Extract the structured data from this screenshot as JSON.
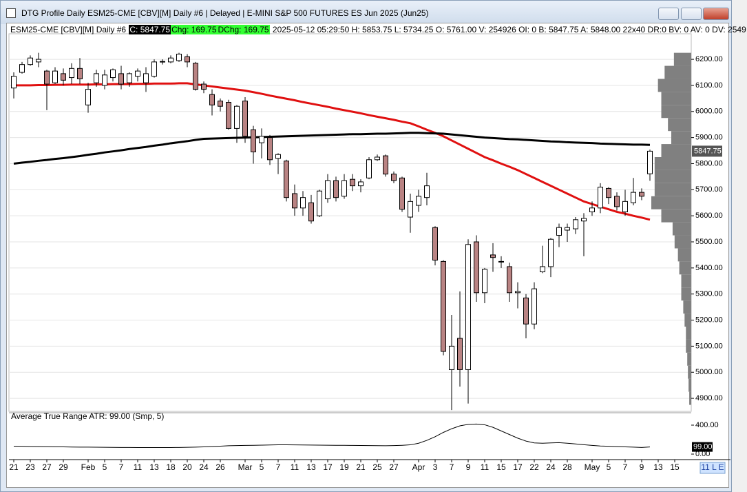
{
  "window": {
    "title": "DTG Profile Daily ESM25-CME [CBV][M]  Daily #6 | Delayed | E-MINI S&P 500 FUTURES ES Jun 2025 (Jun25)"
  },
  "header": {
    "symbol": "ESM25-CME [CBV][M]  Daily #6",
    "close": "C: 5847.75",
    "change": "Chg: 169.75",
    "dchange": "DChg: 169.75",
    "details": "2025-05-12 05:29:50 H: 5853.75 L: 5734.25 O: 5761.00 V: 254926 OI: 0 B: 5847.75 A: 5848.00 22x40 DR:0 BV: 0 AV: 0 DV: 2549"
  },
  "chart_data": [
    {
      "type": "candlestick",
      "categories": [
        "21",
        null,
        "23",
        null,
        "27",
        null,
        "29",
        null,
        null,
        "Feb",
        null,
        "5",
        null,
        "7",
        null,
        "11",
        null,
        "13",
        null,
        "18",
        null,
        "20",
        null,
        "24",
        null,
        "26",
        null,
        null,
        "Mar",
        null,
        "5",
        null,
        "7",
        null,
        "11",
        null,
        "13",
        null,
        "17",
        null,
        "19",
        null,
        "21",
        null,
        "25",
        null,
        "27",
        null,
        null,
        "Apr",
        null,
        "3",
        null,
        "7",
        null,
        "9",
        null,
        "11",
        null,
        "15",
        null,
        "17",
        null,
        "22",
        null,
        "24",
        null,
        "28",
        null,
        null,
        "May",
        null,
        "5",
        null,
        "7",
        null,
        "9",
        null
      ],
      "extra_categories": [
        "13",
        null,
        "15"
      ],
      "open": [
        6090,
        6150,
        6180,
        6190,
        6155,
        6110,
        6145,
        6130,
        6165,
        6025,
        6110,
        6100,
        6130,
        6145,
        6110,
        6135,
        6110,
        6135,
        6190,
        6190,
        6195,
        6210,
        6185,
        6105,
        6065,
        6040,
        6035,
        5935,
        6040,
        5930,
        5880,
        5900,
        5820,
        5810,
        5685,
        5630,
        5650,
        5600,
        5665,
        5735,
        5675,
        5740,
        5715,
        5745,
        5815,
        5830,
        5760,
        5745,
        5595,
        5640,
        5670,
        5555,
        5425,
        5010,
        5130,
        5010,
        5500,
        5305,
        5450,
        5425,
        5405,
        5305,
        5285,
        5185,
        5385,
        5405,
        5525,
        5545,
        5550,
        5580,
        5615,
        5630,
        5705,
        5675,
        5615,
        5650,
        5690,
        5761
      ],
      "high": [
        6150,
        6190,
        6215,
        6225,
        6160,
        6170,
        6165,
        6185,
        6205,
        6110,
        6160,
        6160,
        6165,
        6175,
        6150,
        6165,
        6170,
        6200,
        6200,
        6215,
        6225,
        6220,
        6190,
        6115,
        6085,
        6050,
        6045,
        6025,
        6055,
        5945,
        5935,
        5910,
        5840,
        5815,
        5720,
        5695,
        5680,
        5700,
        5760,
        5750,
        5760,
        5760,
        5740,
        5825,
        5835,
        5835,
        5770,
        5750,
        5685,
        5700,
        5765,
        5560,
        5430,
        5220,
        5310,
        5510,
        5525,
        5400,
        5495,
        5445,
        5420,
        5345,
        5300,
        5345,
        5485,
        5515,
        5570,
        5570,
        5595,
        5610,
        5655,
        5725,
        5710,
        5690,
        5700,
        5745,
        5705,
        5853.75
      ],
      "low": [
        6050,
        6145,
        6175,
        6170,
        6005,
        6105,
        6100,
        6105,
        6105,
        5995,
        6095,
        6085,
        6115,
        6085,
        6095,
        6115,
        6075,
        6130,
        6180,
        6185,
        6190,
        6170,
        6080,
        6070,
        5985,
        6000,
        5930,
        5880,
        5880,
        5800,
        5820,
        5795,
        5760,
        5655,
        5600,
        5600,
        5570,
        5595,
        5650,
        5655,
        5665,
        5695,
        5690,
        5740,
        5810,
        5750,
        5725,
        5615,
        5535,
        5615,
        5640,
        5410,
        5065,
        4855,
        4945,
        4880,
        5270,
        5265,
        5385,
        5400,
        5270,
        5245,
        5130,
        5165,
        5380,
        5365,
        5480,
        5500,
        5530,
        5445,
        5600,
        5610,
        5645,
        5620,
        5600,
        5640,
        5660,
        5734.25
      ],
      "close": [
        6135,
        6180,
        6205,
        6200,
        6105,
        6155,
        6120,
        6165,
        6125,
        6085,
        6145,
        6140,
        6160,
        6105,
        6145,
        6155,
        6145,
        6190,
        6192,
        6205,
        6220,
        6190,
        6085,
        6085,
        6025,
        6020,
        5935,
        6020,
        5905,
        5845,
        5905,
        5815,
        5835,
        5670,
        5630,
        5670,
        5580,
        5695,
        5735,
        5670,
        5735,
        5715,
        5730,
        5815,
        5825,
        5760,
        5735,
        5625,
        5655,
        5675,
        5715,
        5430,
        5080,
        5100,
        5010,
        5490,
        5305,
        5395,
        5440,
        5425,
        5305,
        5310,
        5185,
        5320,
        5405,
        5510,
        5555,
        5555,
        5585,
        5590,
        5630,
        5710,
        5670,
        5635,
        5655,
        5690,
        5675,
        5847.75
      ],
      "up_color": "#ffffff",
      "down_color": "#b98383",
      "lines": [
        {
          "color": "#e01010",
          "values": [
            6100,
            6100,
            6100,
            6101,
            6101,
            6102,
            6102,
            6103,
            6103,
            6103,
            6104,
            6104,
            6105,
            6105,
            6105,
            6106,
            6106,
            6107,
            6107,
            6107,
            6108,
            6108,
            6104,
            6100,
            6096,
            6092,
            6088,
            6084,
            6080,
            6074,
            6068,
            6061,
            6055,
            6049,
            6043,
            6036,
            6030,
            6024,
            6018,
            6011,
            6005,
            5999,
            5993,
            5986,
            5980,
            5974,
            5968,
            5961,
            5955,
            5943,
            5930,
            5918,
            5905,
            5889,
            5873,
            5857,
            5841,
            5825,
            5813,
            5800,
            5788,
            5775,
            5760,
            5745,
            5730,
            5715,
            5700,
            5685,
            5670,
            5655,
            5645,
            5635,
            5625,
            5615,
            5608,
            5600,
            5593,
            5585
          ]
        },
        {
          "color": "#000000",
          "values": [
            5800,
            5804,
            5807,
            5811,
            5814,
            5818,
            5821,
            5825,
            5829,
            5834,
            5838,
            5843,
            5847,
            5851,
            5856,
            5860,
            5864,
            5869,
            5873,
            5878,
            5882,
            5886,
            5891,
            5895,
            5896,
            5897,
            5898,
            5899,
            5900,
            5901,
            5902,
            5903,
            5904,
            5905,
            5906,
            5907,
            5908,
            5909,
            5910,
            5911,
            5912,
            5913,
            5913,
            5914,
            5915,
            5915,
            5916,
            5917,
            5918,
            5918,
            5917,
            5916,
            5915,
            5912,
            5909,
            5906,
            5903,
            5900,
            5898,
            5896,
            5894,
            5893,
            5891,
            5889,
            5887,
            5885,
            5884,
            5882,
            5881,
            5880,
            5879,
            5877,
            5876,
            5875,
            5874,
            5873,
            5873,
            5872
          ]
        }
      ],
      "profile": {
        "color": "#808080",
        "prices": [
          4900,
          4950,
          5000,
          5050,
          5100,
          5150,
          5200,
          5250,
          5300,
          5350,
          5400,
          5450,
          5500,
          5550,
          5600,
          5650,
          5700,
          5750,
          5800,
          5850,
          5900,
          5950,
          6000,
          6050,
          6100,
          6150,
          6200
        ],
        "volumes": [
          3,
          4,
          5,
          6,
          8,
          8,
          10,
          12,
          15,
          15,
          18,
          20,
          25,
          28,
          45,
          60,
          55,
          55,
          55,
          45,
          30,
          35,
          45,
          45,
          50,
          40,
          26
        ],
        "xlim": [
          0,
          60
        ]
      },
      "ylim": [
        4850,
        6298
      ],
      "yticks": [
        {
          "value": 4900,
          "label": "4900.00"
        },
        {
          "value": 5000,
          "label": "5000.00"
        },
        {
          "value": 5100,
          "label": "5100.00"
        },
        {
          "value": 5200,
          "label": "5200.00"
        },
        {
          "value": 5300,
          "label": "5300.00"
        },
        {
          "value": 5400,
          "label": "5400.00"
        },
        {
          "value": 5500,
          "label": "5500.00"
        },
        {
          "value": 5600,
          "label": "5600.00"
        },
        {
          "value": 5700,
          "label": "5700.00"
        },
        {
          "value": 5800,
          "label": "5800.00"
        },
        {
          "value": 5900,
          "label": "5900.00"
        },
        {
          "value": 6000,
          "label": "6000.00"
        },
        {
          "value": 6100,
          "label": "6100.00"
        },
        {
          "value": 6200,
          "label": "6200.00"
        }
      ],
      "grid": true
    },
    {
      "type": "line",
      "title": "Average True Range  ATR: 99.00  (Smp, 5)",
      "color": "#000000",
      "values": [
        110,
        108,
        105,
        103,
        102,
        100,
        100,
        98,
        97,
        96,
        95,
        94,
        93,
        92,
        92,
        91,
        90,
        90,
        90,
        91,
        92,
        94,
        97,
        100,
        105,
        110,
        115,
        118,
        120,
        122,
        124,
        126,
        128,
        128,
        127,
        126,
        125,
        124,
        123,
        122,
        121,
        120,
        119,
        118,
        117,
        116,
        118,
        122,
        128,
        150,
        190,
        240,
        300,
        350,
        390,
        410,
        415,
        405,
        370,
        320,
        270,
        220,
        180,
        155,
        150,
        155,
        158,
        150,
        140,
        130,
        120,
        112,
        108,
        104,
        100,
        96,
        92,
        99
      ],
      "value_labels": [
        null,
        null,
        null,
        null,
        null,
        null,
        null,
        null,
        null,
        null,
        null,
        null,
        null,
        null,
        null,
        null,
        null,
        null,
        null,
        null,
        null,
        null,
        null,
        null,
        null,
        null,
        null,
        null,
        null,
        null,
        null,
        null,
        null,
        null,
        null,
        null,
        null,
        null,
        null,
        null,
        null,
        null,
        null,
        null,
        null,
        null,
        null,
        null,
        null,
        null,
        null,
        null,
        null,
        null,
        null,
        null,
        null,
        null,
        null,
        null,
        null,
        null,
        null,
        null,
        null,
        null,
        null,
        null,
        null,
        null,
        null,
        null,
        null,
        null,
        null,
        null,
        null,
        "99.00"
      ],
      "ylim": [
        -76,
        571
      ],
      "yticks": [
        {
          "value": 0,
          "label": "0.00"
        },
        {
          "value": 400,
          "label": "400.00"
        }
      ]
    }
  ],
  "footer": {
    "status": "11 L E"
  }
}
